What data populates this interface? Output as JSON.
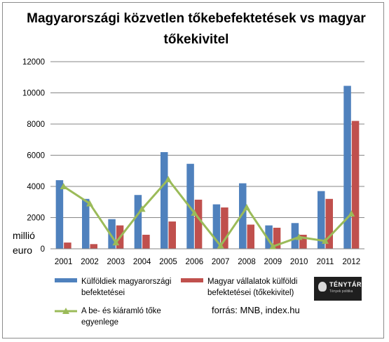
{
  "chart_data": {
    "type": "bar",
    "title": "Magyarországi közvetlen tőkebefektetések vs magyar tőkekivitel",
    "ylabel": "millió euro",
    "ylim": [
      0,
      12000
    ],
    "yticks": [
      "0",
      "2000",
      "4000",
      "6000",
      "8000",
      "10000",
      "12000"
    ],
    "grid": true,
    "legend_position": "bottom",
    "categories": [
      "2001",
      "2002",
      "2003",
      "2004",
      "2005",
      "2006",
      "2007",
      "2008",
      "2009",
      "2010",
      "2011",
      "2012"
    ],
    "series": [
      {
        "name": "Külföldiek magyarországi befektetései",
        "type": "bar",
        "color": "#4f81bd",
        "values": [
          4400,
          3200,
          1900,
          3450,
          6200,
          5450,
          2850,
          4200,
          1500,
          1650,
          3700,
          10450
        ]
      },
      {
        "name": "Magyar vállalatok külföldi befektetései (tőkekivitel)",
        "type": "bar",
        "color": "#c0504d",
        "values": [
          400,
          300,
          1500,
          900,
          1750,
          3150,
          2650,
          1550,
          1350,
          900,
          3200,
          8200
        ]
      },
      {
        "name": "A be- és kiáramló tőke egyenlege",
        "type": "line",
        "color": "#9bbb59",
        "values": [
          4000,
          2900,
          400,
          2550,
          4450,
          2300,
          200,
          2650,
          150,
          750,
          500,
          2250
        ]
      }
    ],
    "source": "forrás: MNB, index.hu"
  },
  "logo": {
    "brand": "TÉNYTÁR",
    "tagline": "Tények politika"
  }
}
